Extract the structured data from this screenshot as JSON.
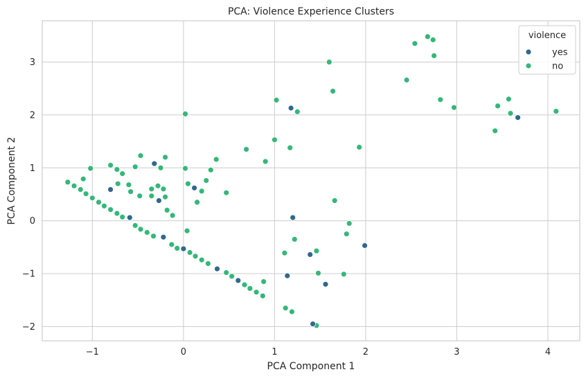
{
  "chart_data": {
    "type": "scatter",
    "title": "PCA: Violence Experience Clusters",
    "xlabel": "PCA Component 1",
    "ylabel": "PCA Component 2",
    "xlim": [
      -1.55,
      4.35
    ],
    "ylim": [
      -2.27,
      3.78
    ],
    "x_ticks": [
      -1,
      0,
      1,
      2,
      3,
      4
    ],
    "y_ticks": [
      -2,
      -1,
      0,
      1,
      2,
      3
    ],
    "x_tick_labels": [
      "−1",
      "0",
      "1",
      "2",
      "3",
      "4"
    ],
    "y_tick_labels": [
      "−2",
      "−1",
      "0",
      "1",
      "2",
      "3"
    ],
    "grid": true,
    "legend": {
      "title": "violence",
      "placement": "top-right"
    },
    "colors": {
      "yes": "#31688e",
      "no": "#35b779"
    },
    "series": [
      {
        "name": "yes",
        "color": "#31688e",
        "points": [
          [
            -0.8,
            0.59
          ],
          [
            -0.32,
            1.08
          ],
          [
            -0.27,
            0.38
          ],
          [
            -0.22,
            -0.31
          ],
          [
            0.0,
            -0.53
          ],
          [
            0.12,
            0.62
          ],
          [
            0.37,
            -0.91
          ],
          [
            0.6,
            -1.13
          ],
          [
            -0.59,
            0.06
          ],
          [
            1.18,
            2.13
          ],
          [
            1.2,
            0.06
          ],
          [
            1.14,
            -1.04
          ],
          [
            1.39,
            -0.64
          ],
          [
            1.56,
            -1.2
          ],
          [
            1.42,
            -1.95
          ],
          [
            1.99,
            -0.47
          ],
          [
            3.67,
            1.95
          ]
        ]
      },
      {
        "name": "no",
        "color": "#35b779",
        "points": [
          [
            -1.27,
            0.73
          ],
          [
            -1.2,
            0.66
          ],
          [
            -1.13,
            0.59
          ],
          [
            -1.07,
            0.51
          ],
          [
            -1.0,
            0.43
          ],
          [
            -0.93,
            0.35
          ],
          [
            -0.87,
            0.28
          ],
          [
            -0.8,
            0.21
          ],
          [
            -0.73,
            0.14
          ],
          [
            -0.67,
            0.07
          ],
          [
            -0.53,
            -0.09
          ],
          [
            -0.47,
            -0.16
          ],
          [
            -0.4,
            -0.22
          ],
          [
            -0.33,
            -0.29
          ],
          [
            -0.13,
            -0.45
          ],
          [
            -0.07,
            -0.52
          ],
          [
            0.07,
            -0.6
          ],
          [
            0.13,
            -0.67
          ],
          [
            0.2,
            -0.74
          ],
          [
            0.27,
            -0.81
          ],
          [
            0.47,
            -0.98
          ],
          [
            0.53,
            -1.05
          ],
          [
            0.67,
            -1.21
          ],
          [
            0.73,
            -1.28
          ],
          [
            0.8,
            -1.35
          ],
          [
            0.87,
            -1.42
          ],
          [
            0.88,
            -1.15
          ],
          [
            -1.02,
            0.99
          ],
          [
            -1.1,
            0.79
          ],
          [
            -0.8,
            1.05
          ],
          [
            -0.73,
            0.97
          ],
          [
            -0.67,
            0.89
          ],
          [
            -0.53,
            1.02
          ],
          [
            -0.47,
            1.23
          ],
          [
            -0.6,
            0.68
          ],
          [
            -0.72,
            0.7
          ],
          [
            -0.58,
            0.55
          ],
          [
            -0.48,
            0.47
          ],
          [
            -0.35,
            0.6
          ],
          [
            -0.35,
            0.47
          ],
          [
            -0.28,
            0.66
          ],
          [
            -0.25,
            1.0
          ],
          [
            -0.2,
            1.2
          ],
          [
            -0.22,
            0.6
          ],
          [
            -0.2,
            0.45
          ],
          [
            -0.18,
            0.2
          ],
          [
            -0.12,
            0.1
          ],
          [
            0.02,
            2.02
          ],
          [
            0.02,
            0.99
          ],
          [
            0.05,
            0.7
          ],
          [
            0.04,
            -0.19
          ],
          [
            0.15,
            0.35
          ],
          [
            0.2,
            0.56
          ],
          [
            0.25,
            0.76
          ],
          [
            0.3,
            0.96
          ],
          [
            0.36,
            1.16
          ],
          [
            0.47,
            0.53
          ],
          [
            0.69,
            1.35
          ],
          [
            0.9,
            1.12
          ],
          [
            1.02,
            2.28
          ],
          [
            1.0,
            1.53
          ],
          [
            1.17,
            1.38
          ],
          [
            1.25,
            2.06
          ],
          [
            1.11,
            -0.61
          ],
          [
            1.22,
            -0.35
          ],
          [
            1.46,
            -0.57
          ],
          [
            1.48,
            -0.99
          ],
          [
            1.12,
            -1.65
          ],
          [
            1.19,
            -1.72
          ],
          [
            1.46,
            -1.98
          ],
          [
            1.6,
            3.0
          ],
          [
            1.64,
            2.45
          ],
          [
            1.66,
            0.38
          ],
          [
            1.76,
            -1.01
          ],
          [
            1.79,
            -0.25
          ],
          [
            1.82,
            -0.05
          ],
          [
            1.93,
            1.39
          ],
          [
            2.45,
            2.66
          ],
          [
            2.54,
            3.35
          ],
          [
            2.68,
            3.48
          ],
          [
            2.74,
            3.42
          ],
          [
            2.75,
            3.12
          ],
          [
            2.82,
            2.29
          ],
          [
            2.97,
            2.14
          ],
          [
            3.42,
            1.7
          ],
          [
            3.45,
            2.17
          ],
          [
            3.57,
            2.3
          ],
          [
            3.59,
            2.03
          ],
          [
            4.09,
            2.07
          ]
        ]
      }
    ]
  }
}
